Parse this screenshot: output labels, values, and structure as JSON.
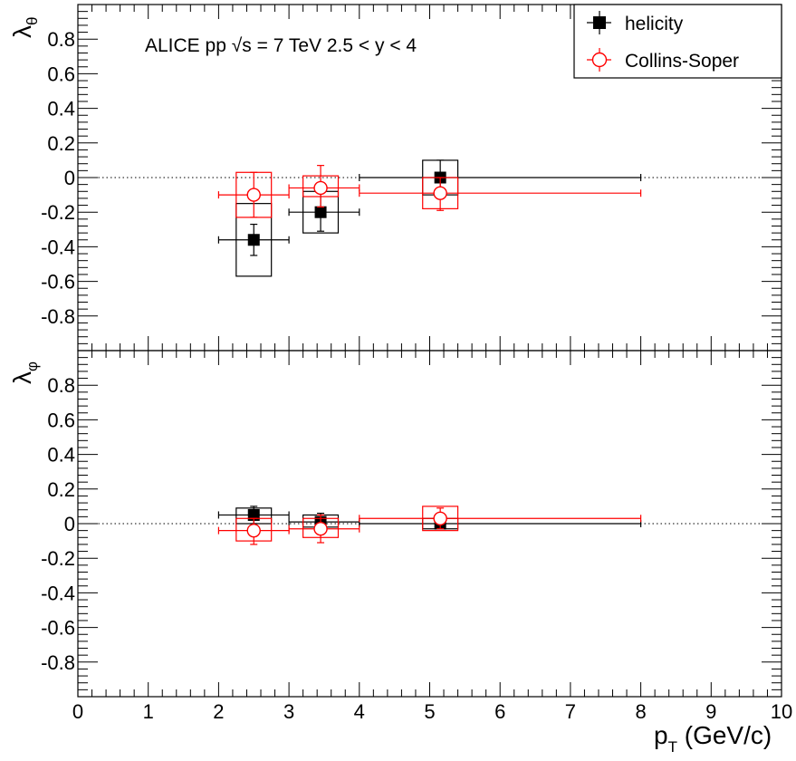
{
  "chart_data": [
    {
      "panel": "top",
      "type": "scatter",
      "ylabel": "λ",
      "ylabel_sub": "θ",
      "annotation": "ALICE  pp  √s = 7 TeV    2.5 < y < 4",
      "annotation_parts": {
        "prefix": "ALICE  pp  ",
        "sqrt": "√",
        "rest": "s = 7 TeV    2.5 < y < 4"
      },
      "xlim": [
        0,
        10
      ],
      "ylim": [
        -1,
        1
      ],
      "yticks": [
        0.8,
        0.6,
        0.4,
        0.2,
        0,
        -0.2,
        -0.4,
        -0.6,
        -0.8
      ],
      "ytick_labels": [
        "0.8",
        "0.6",
        "0.4",
        "0.2",
        "0",
        "-0.2",
        "-0.4",
        "-0.6",
        "-0.8"
      ],
      "reference_line": 0,
      "legend": {
        "placement": "top-right",
        "entries": [
          "helicity",
          "Collins-Soper"
        ]
      },
      "series": [
        {
          "name": "helicity",
          "color": "#000000",
          "marker": "filled-square",
          "points": [
            {
              "x": 2.5,
              "xlo": 2.0,
              "xhi": 3.0,
              "y": -0.36,
              "ylo": -0.45,
              "yhi": -0.27,
              "sys_x": [
                2.25,
                2.75
              ],
              "sys_y": [
                -0.57,
                -0.15
              ]
            },
            {
              "x": 3.45,
              "xlo": 3.0,
              "xhi": 4.0,
              "y": -0.2,
              "ylo": -0.31,
              "yhi": -0.09,
              "sys_x": [
                3.2,
                3.7
              ],
              "sys_y": [
                -0.32,
                -0.08
              ]
            },
            {
              "x": 5.15,
              "xlo": 4.0,
              "xhi": 8.0,
              "y": 0.0,
              "ylo": -0.1,
              "yhi": 0.1,
              "sys_x": [
                4.9,
                5.4
              ],
              "sys_y": [
                -0.1,
                0.1
              ]
            }
          ]
        },
        {
          "name": "Collins-Soper",
          "color": "#ff0000",
          "marker": "open-circle",
          "points": [
            {
              "x": 2.5,
              "xlo": 2.0,
              "xhi": 3.0,
              "y": -0.1,
              "ylo": -0.23,
              "yhi": 0.03,
              "sys_x": [
                2.25,
                2.75
              ],
              "sys_y": [
                -0.23,
                0.03
              ]
            },
            {
              "x": 3.45,
              "xlo": 3.0,
              "xhi": 4.0,
              "y": -0.06,
              "ylo": -0.17,
              "yhi": 0.07,
              "sys_x": [
                3.2,
                3.7
              ],
              "sys_y": [
                -0.11,
                0.01
              ]
            },
            {
              "x": 5.15,
              "xlo": 4.0,
              "xhi": 8.0,
              "y": -0.09,
              "ylo": -0.19,
              "yhi": 0.0,
              "sys_x": [
                4.9,
                5.4
              ],
              "sys_y": [
                -0.18,
                0.0
              ]
            }
          ]
        }
      ]
    },
    {
      "panel": "bottom",
      "type": "scatter",
      "ylabel": "λ",
      "ylabel_sub": "φ",
      "xlabel": "p",
      "xlabel_sub": "T",
      "xlabel_rest": " (GeV/c)",
      "xlim": [
        0,
        10
      ],
      "ylim": [
        -1,
        1
      ],
      "xticks": [
        0,
        1,
        2,
        3,
        4,
        5,
        6,
        7,
        8,
        9,
        10
      ],
      "xtick_labels": [
        "0",
        "1",
        "2",
        "3",
        "4",
        "5",
        "6",
        "7",
        "8",
        "9",
        "10"
      ],
      "yticks": [
        0.8,
        0.6,
        0.4,
        0.2,
        0,
        -0.2,
        -0.4,
        -0.6,
        -0.8
      ],
      "ytick_labels": [
        "0.8",
        "0.6",
        "0.4",
        "0.2",
        "0",
        "-0.2",
        "-0.4",
        "-0.6",
        "-0.8"
      ],
      "reference_line": 0,
      "series": [
        {
          "name": "helicity",
          "color": "#000000",
          "marker": "filled-square",
          "points": [
            {
              "x": 2.5,
              "xlo": 2.0,
              "xhi": 3.0,
              "y": 0.05,
              "ylo": 0.0,
              "yhi": 0.1,
              "sys_x": [
                2.25,
                2.75
              ],
              "sys_y": [
                0.0,
                0.09
              ]
            },
            {
              "x": 3.45,
              "xlo": 3.0,
              "xhi": 4.0,
              "y": 0.01,
              "ylo": -0.04,
              "yhi": 0.06,
              "sys_x": [
                3.2,
                3.7
              ],
              "sys_y": [
                -0.02,
                0.05
              ]
            },
            {
              "x": 5.15,
              "xlo": 4.0,
              "xhi": 8.0,
              "y": 0.0,
              "ylo": -0.03,
              "yhi": 0.03,
              "sys_x": [
                4.9,
                5.4
              ],
              "sys_y": [
                -0.03,
                0.03
              ]
            }
          ]
        },
        {
          "name": "Collins-Soper",
          "color": "#ff0000",
          "marker": "open-circle",
          "points": [
            {
              "x": 2.5,
              "xlo": 2.0,
              "xhi": 3.0,
              "y": -0.04,
              "ylo": -0.12,
              "yhi": 0.03,
              "sys_x": [
                2.25,
                2.75
              ],
              "sys_y": [
                -0.1,
                0.03
              ]
            },
            {
              "x": 3.45,
              "xlo": 3.0,
              "xhi": 4.0,
              "y": -0.03,
              "ylo": -0.11,
              "yhi": 0.05,
              "sys_x": [
                3.2,
                3.7
              ],
              "sys_y": [
                -0.08,
                0.03
              ]
            },
            {
              "x": 5.15,
              "xlo": 4.0,
              "xhi": 8.0,
              "y": 0.03,
              "ylo": -0.03,
              "yhi": 0.09,
              "sys_x": [
                4.9,
                5.4
              ],
              "sys_y": [
                -0.04,
                0.1
              ]
            }
          ]
        }
      ]
    }
  ]
}
